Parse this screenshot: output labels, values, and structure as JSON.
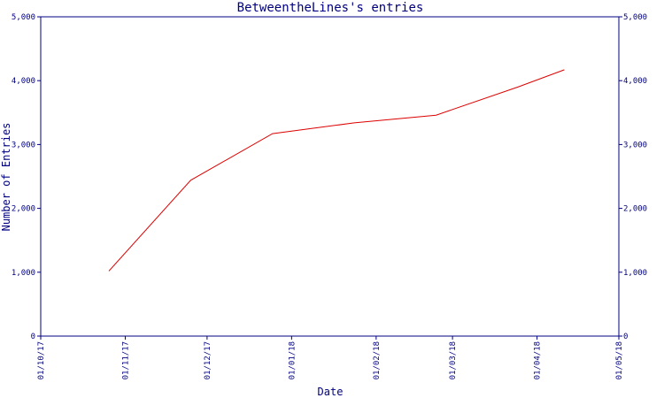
{
  "chart_data": {
    "type": "line",
    "title": "BetweentheLines's entries",
    "xlabel": "Date",
    "ylabel": "Number of Entries",
    "ylim": [
      0,
      5000
    ],
    "yticks": [
      0,
      1000,
      2000,
      3000,
      4000,
      5000
    ],
    "ytick_labels": [
      "0",
      "1,000",
      "2,000",
      "3,000",
      "4,000",
      "5,000"
    ],
    "xlim": [
      "2017-10-01",
      "2018-05-01"
    ],
    "xticks": [
      "2017-10-01",
      "2017-11-01",
      "2017-12-01",
      "2018-01-01",
      "2018-02-01",
      "2018-03-01",
      "2018-04-01",
      "2018-05-01"
    ],
    "xtick_labels": [
      "01/10/17",
      "01/11/17",
      "01/12/17",
      "01/01/18",
      "01/02/18",
      "01/03/18",
      "01/04/18",
      "01/05/18"
    ],
    "right_axis": true,
    "grid": false,
    "color": "#dd0000",
    "series": [
      {
        "x": [
          "2017-10-26",
          "2017-11-25",
          "2017-12-25",
          "2018-01-24",
          "2018-02-23",
          "2018-03-25",
          "2018-04-11"
        ],
        "values": [
          1020,
          2440,
          3170,
          3340,
          3460,
          3900,
          4170
        ]
      }
    ]
  }
}
